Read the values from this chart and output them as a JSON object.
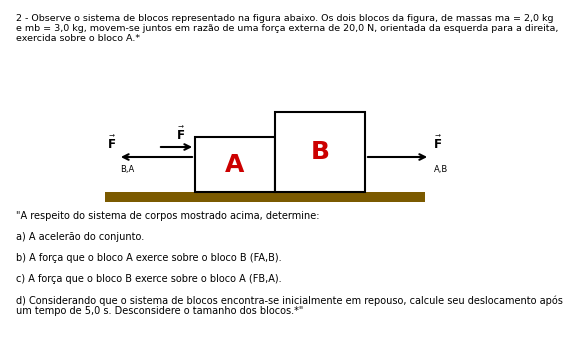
{
  "title_line1": "2 - Observe o sistema de blocos representado na figura abaixo. Os dois blocos da figura, de massas ma = 2,0 kg",
  "title_line2": "e mb = 3,0 kg, movem-se juntos em razão de uma força externa de 20,0 N, orientada da esquerda para a direita,",
  "title_line3": "exercida sobre o bloco A.*",
  "block_A_label": "A",
  "block_B_label": "B",
  "label_color_red": "#CC0000",
  "block_fill": "#FFFFFF",
  "block_edge": "#000000",
  "ground_color": "#7B5A00",
  "background_color": "#FFFFFF",
  "arrow_color": "#000000",
  "text_color": "#000000",
  "font_size_title": 6.8,
  "font_size_question": 7.0,
  "q_line1": "\"A respeito do sistema de corpos mostrado acima, determine:",
  "q_line2": "",
  "q_line3": "a) A acelerão do conjunto.",
  "q_line4": "",
  "q_line5": "b) A força que o bloco A exerce sobre o bloco B (FA,B).",
  "q_line6": "",
  "q_line7": "c) A força que o bloco B exerce sobre o bloco A (FB,A).",
  "q_line8": "",
  "q_line9": "d) Considerando que o sistema de blocos encontra-se inicialmente em repouso, calcule seu deslocamento após",
  "q_line10": "um tempo de 5,0 s. Desconsidere o tamanho dos blocos.*\""
}
